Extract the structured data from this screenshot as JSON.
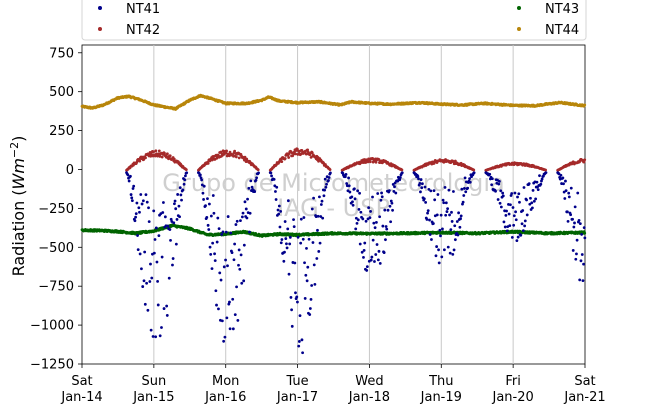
{
  "chart_data": {
    "type": "scatter",
    "ylabel": "Radiation (Wm⁻²)",
    "ylabel_base": "Radiation (",
    "ylabel_unit": "Wm",
    "ylabel_exp": "−2",
    "ylabel_close": ")",
    "ylim": [
      -1250,
      800
    ],
    "xlim": [
      0,
      7
    ],
    "yticks": [
      -1250,
      -1000,
      -750,
      -500,
      -250,
      0,
      250,
      500,
      750
    ],
    "ytick_labels": [
      "−1250",
      "−1000",
      "−750",
      "−500",
      "−250",
      "0",
      "250",
      "500",
      "750"
    ],
    "xticks": [
      0,
      1,
      2,
      3,
      4,
      5,
      6,
      7
    ],
    "xtick_labels": [
      [
        "Sat",
        "Jan-14"
      ],
      [
        "Sun",
        "Jan-15"
      ],
      [
        "Mon",
        "Jan-16"
      ],
      [
        "Tue",
        "Jan-17"
      ],
      [
        "Wed",
        "Jan-18"
      ],
      [
        "Thu",
        "Jan-19"
      ],
      [
        "Fri",
        "Jan-20"
      ],
      [
        "Sat",
        "Jan-21"
      ]
    ],
    "grid": "vertical",
    "legend_placement": "top",
    "watermark": [
      "Grupo de Micrometeorologia",
      "IAG - USP"
    ],
    "series": [
      {
        "name": "NT41",
        "color": "#00008b",
        "daily": [
          {
            "start": 0.62,
            "end": 1.46,
            "min": -1170
          },
          {
            "start": 1.62,
            "end": 2.46,
            "min": -1190
          },
          {
            "start": 2.62,
            "end": 3.46,
            "min": -1190
          },
          {
            "start": 3.62,
            "end": 4.46,
            "min": -720
          },
          {
            "start": 4.62,
            "end": 5.46,
            "min": -630
          },
          {
            "start": 5.62,
            "end": 6.46,
            "min": -470
          },
          {
            "start": 6.62,
            "end": 7.46,
            "min": -820
          }
        ]
      },
      {
        "name": "NT42",
        "color": "#a52a2a",
        "daily": [
          {
            "start": 0.62,
            "end": 1.46,
            "max": 115
          },
          {
            "start": 1.62,
            "end": 2.46,
            "max": 120
          },
          {
            "start": 2.62,
            "end": 3.46,
            "max": 130
          },
          {
            "start": 3.62,
            "end": 4.46,
            "max": 70
          },
          {
            "start": 4.62,
            "end": 5.46,
            "max": 65
          },
          {
            "start": 5.62,
            "end": 6.46,
            "max": 45
          },
          {
            "start": 6.62,
            "end": 7.46,
            "max": 70
          }
        ]
      },
      {
        "name": "NT43",
        "color": "#006400",
        "x": [
          0,
          0.25,
          0.5,
          0.75,
          1.0,
          1.25,
          1.5,
          1.75,
          2.0,
          2.25,
          2.5,
          2.75,
          3.0,
          3.5,
          4.0,
          4.5,
          5.0,
          5.5,
          6.0,
          6.5,
          7.0
        ],
        "y": [
          -390,
          -392,
          -398,
          -410,
          -395,
          -360,
          -380,
          -420,
          -415,
          -400,
          -425,
          -415,
          -420,
          -410,
          -412,
          -410,
          -405,
          -410,
          -400,
          -410,
          -405
        ]
      },
      {
        "name": "NT44",
        "color": "#b8860b",
        "x": [
          0,
          0.15,
          0.3,
          0.5,
          0.65,
          0.8,
          1.0,
          1.3,
          1.5,
          1.65,
          1.8,
          2.0,
          2.3,
          2.5,
          2.6,
          2.75,
          3.0,
          3.3,
          3.6,
          3.75,
          4.0,
          4.3,
          4.7,
          5.0,
          5.3,
          5.6,
          6.0,
          6.3,
          6.65,
          7.0
        ],
        "y": [
          405,
          395,
          415,
          460,
          470,
          450,
          415,
          390,
          445,
          475,
          455,
          425,
          425,
          445,
          465,
          440,
          430,
          435,
          415,
          435,
          425,
          420,
          430,
          420,
          415,
          425,
          412,
          410,
          430,
          410
        ]
      }
    ]
  }
}
